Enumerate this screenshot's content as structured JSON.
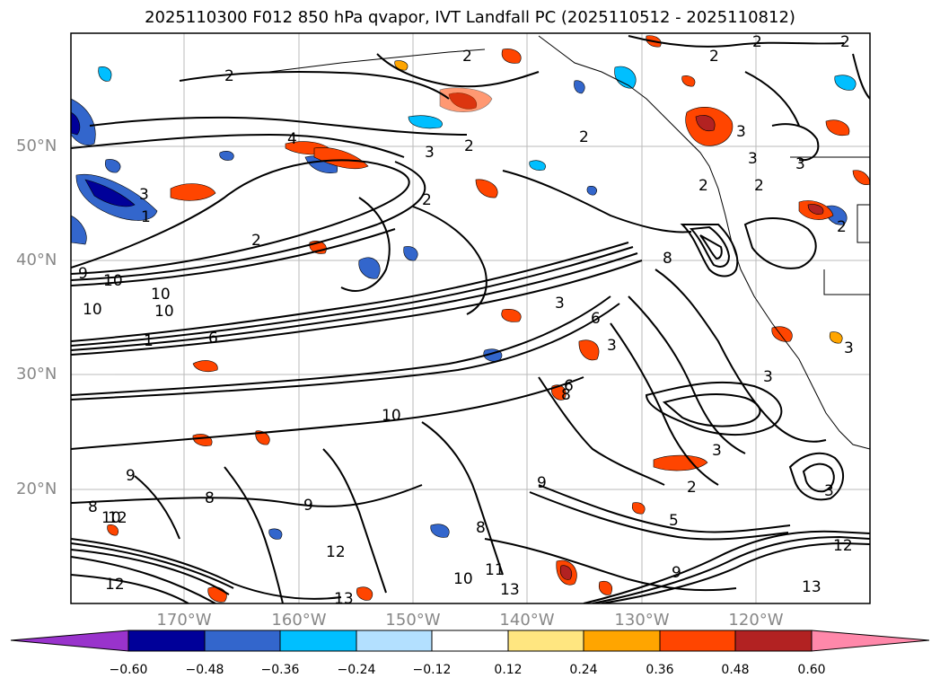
{
  "title": "2025110300 F012 850 hPa qvapor, IVT Landfall PC (2025110512 - 2025110812)",
  "lat_labels": [
    "50°N",
    "40°N",
    "30°N",
    "20°N"
  ],
  "lon_labels": [
    "170°W",
    "160°W",
    "150°W",
    "140°W",
    "130°W",
    "120°W"
  ],
  "colorbar": {
    "tick_labels": [
      "−0.60",
      "−0.48",
      "−0.36",
      "−0.24",
      "−0.12",
      "0.12",
      "0.24",
      "0.36",
      "0.48",
      "0.60"
    ],
    "colors": [
      "#9933cc",
      "#000099",
      "#3366cc",
      "#00bfff",
      "#b3e0ff",
      "#ffffff",
      "#ffe680",
      "#ffa500",
      "#ff4500",
      "#b22222",
      "#ff88aa"
    ]
  },
  "contour_labels": [
    "2",
    "2",
    "2",
    "2",
    "4",
    "3",
    "2",
    "2",
    "3",
    "2",
    "1",
    "2",
    "10",
    "10",
    "10",
    "10",
    "10",
    "9",
    "3",
    "8",
    "3",
    "3",
    "6",
    "10",
    "9",
    "8",
    "8",
    "9",
    "3",
    "3",
    "2",
    "3",
    "8",
    "5",
    "12",
    "12",
    "11",
    "13",
    "12",
    "13",
    "8",
    "9",
    "10",
    "6",
    "3",
    "2",
    "2",
    "3",
    "2",
    "3",
    "2",
    "1",
    "6",
    "9",
    "13",
    "12"
  ]
}
